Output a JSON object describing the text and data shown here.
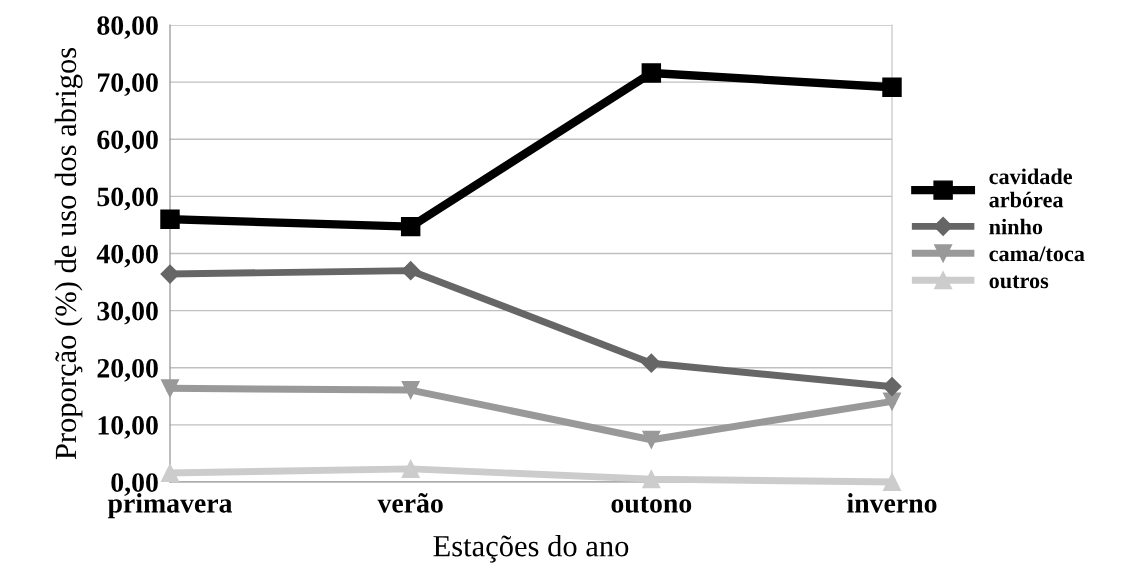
{
  "chart_data": {
    "type": "line",
    "xlabel": "Estações do ano",
    "ylabel": "Proporção (%) de uso dos abrigos",
    "categories": [
      "primavera",
      "verão",
      "outono",
      "inverno"
    ],
    "series": [
      {
        "name": "cavidade\narbórea",
        "color": "#000000",
        "marker": "square",
        "values": [
          46.0,
          44.7,
          71.6,
          69.1
        ]
      },
      {
        "name": "ninho",
        "color": "#666666",
        "marker": "diamond",
        "values": [
          36.4,
          37.0,
          20.8,
          16.7
        ]
      },
      {
        "name": "cama/toca",
        "color": "#999999",
        "marker": "triangle_down",
        "values": [
          16.4,
          16.1,
          7.4,
          14.1
        ]
      },
      {
        "name": "outros",
        "color": "#cccccc",
        "marker": "triangle",
        "values": [
          1.6,
          2.3,
          0.5,
          0.0
        ]
      }
    ],
    "ylim": [
      0,
      80
    ],
    "yticks": [
      {
        "value": 0,
        "label": "0,00"
      },
      {
        "value": 10,
        "label": "10,00"
      },
      {
        "value": 20,
        "label": "20,00"
      },
      {
        "value": 30,
        "label": "30,00"
      },
      {
        "value": 40,
        "label": "40,00"
      },
      {
        "value": 50,
        "label": "50,00"
      },
      {
        "value": 60,
        "label": "60,00"
      },
      {
        "value": 70,
        "label": "70,00"
      },
      {
        "value": 80,
        "label": "80,00"
      }
    ],
    "grid": "y",
    "legend": "right",
    "line_style": "solid"
  }
}
